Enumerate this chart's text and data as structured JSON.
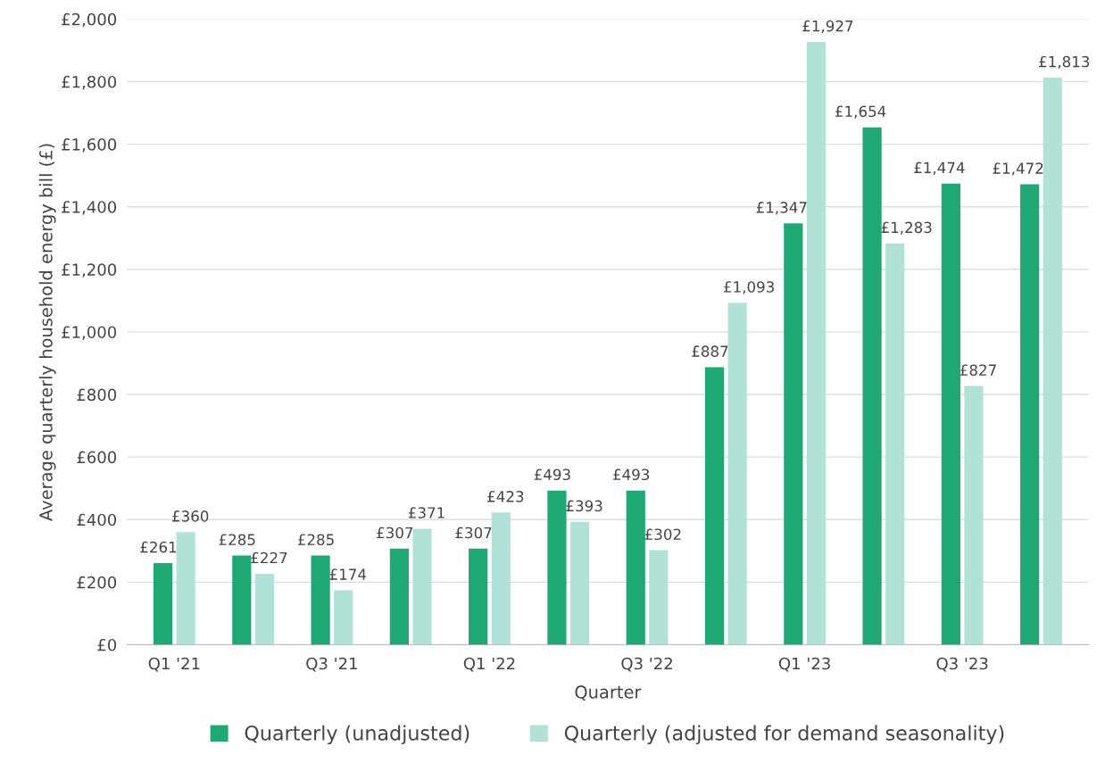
{
  "chart_data": {
    "type": "bar",
    "xlabel": "Quarter",
    "ylabel": "Average quarterly household energy bill (£)",
    "categories": [
      "Q1 '21",
      null,
      "Q3 '21",
      null,
      "Q1 '22",
      null,
      "Q3 '22",
      null,
      "Q1 '23",
      null,
      "Q3 '23",
      null
    ],
    "series": [
      {
        "name": "Quarterly (unadjusted)",
        "color": "#1ea874",
        "values": [
          261,
          285,
          285,
          307,
          307,
          493,
          493,
          887,
          1347,
          1654,
          1474,
          1472
        ],
        "value_labels": [
          "£261",
          "£285",
          "£285",
          "£307",
          "£307",
          "£493",
          "£493",
          "£887",
          "£1,347",
          "£1,654",
          "£1,474",
          "£1,472"
        ]
      },
      {
        "name": "Quarterly (adjusted for demand seasonality)",
        "color": "#b0e3d5",
        "values": [
          360,
          227,
          174,
          371,
          423,
          393,
          302,
          1093,
          1927,
          1283,
          827,
          1813
        ],
        "value_labels": [
          "£360",
          "£227",
          "£174",
          "£371",
          "£423",
          "£393",
          "£302",
          "£1,093",
          "£1,927",
          "£1,283",
          "£827",
          "£1,813"
        ]
      }
    ],
    "ylim": [
      0,
      2000
    ],
    "yticks": [
      {
        "value": 0,
        "label": "£0"
      },
      {
        "value": 200,
        "label": "£200"
      },
      {
        "value": 400,
        "label": "£400"
      },
      {
        "value": 600,
        "label": "£600"
      },
      {
        "value": 800,
        "label": "£800"
      },
      {
        "value": 1000,
        "label": "£1,000"
      },
      {
        "value": 1200,
        "label": "£1,200"
      },
      {
        "value": 1400,
        "label": "£1,400"
      },
      {
        "value": 1600,
        "label": "£1,600"
      },
      {
        "value": 1800,
        "label": "£1,800"
      },
      {
        "value": 2000,
        "label": "£2,000"
      }
    ],
    "grid": "y",
    "legend": "bottom"
  }
}
